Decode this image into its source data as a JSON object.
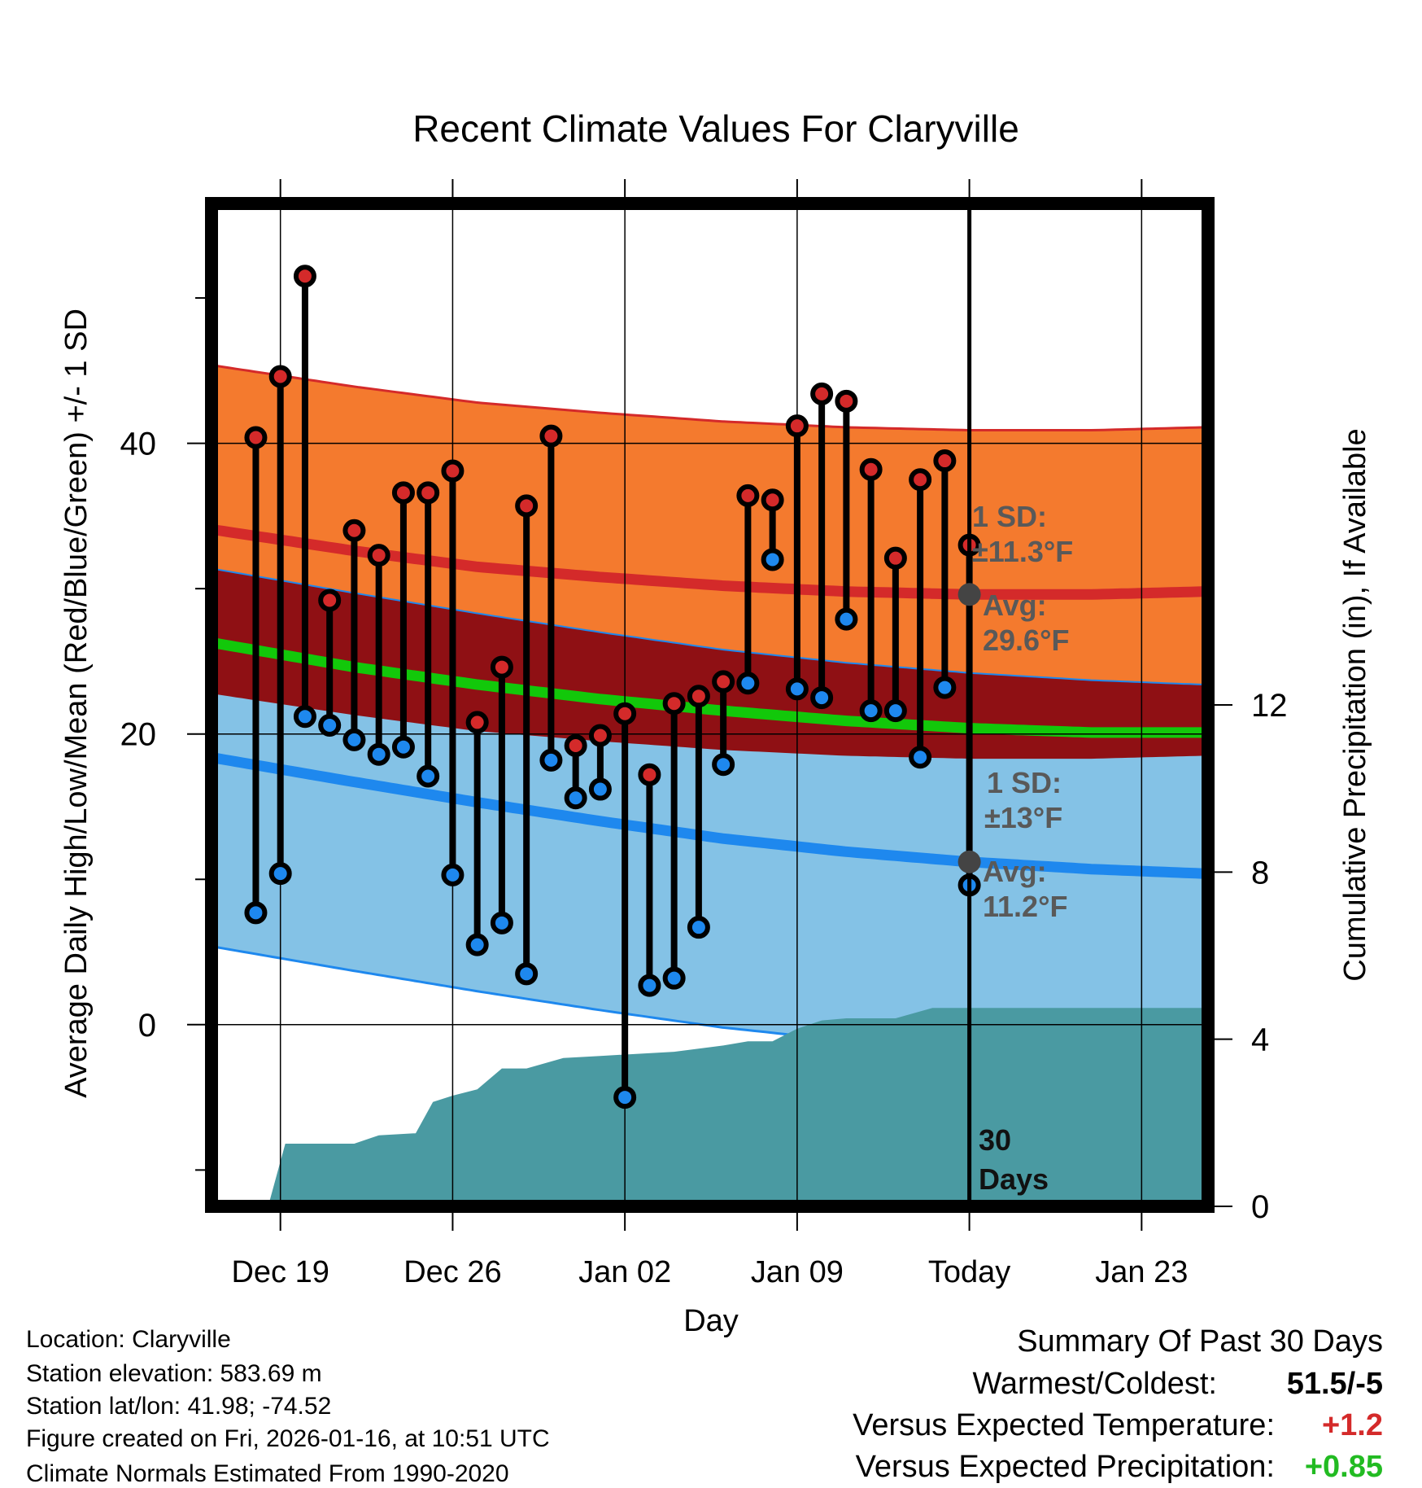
{
  "colors": {
    "high_band": "#f47a2e",
    "high_avg_line": "#d42a2a",
    "mean_band": "#8f1014",
    "mean_avg_line": "#12c80a",
    "low_band": "#84c2e6",
    "low_avg_line": "#1e88ee",
    "precip_fill": "#4a9aa2",
    "high_dot": "#d42a2a",
    "low_dot": "#1e88ee",
    "today_dot": "#444444",
    "annotation_text": "#595959",
    "positive_temp": "#d42a2a",
    "positive_precip": "#22bb22"
  },
  "chart_data": {
    "type": "range",
    "title": "Recent Climate Values For Claryville",
    "xlabel": "Day",
    "ylabel_left": "Average Daily High/Low/Mean (Red/Blue/Green) +/- 1 SD",
    "ylabel_right": "Cumulative Precipitation (in), If Available",
    "x_range_days": [
      -30.8,
      9.7
    ],
    "ylim_left": [
      -12.5,
      56.5
    ],
    "ylim_right": [
      0,
      24
    ],
    "left_ticks": [
      0,
      20,
      40
    ],
    "left_minor_ticks": [
      -10,
      10,
      30,
      50
    ],
    "right_ticks": [
      0,
      4,
      8,
      12
    ],
    "x_ticks": [
      {
        "day": -28,
        "label": "Dec 19"
      },
      {
        "day": -21,
        "label": "Dec 26"
      },
      {
        "day": -14,
        "label": "Jan 02"
      },
      {
        "day": -7,
        "label": "Jan 09"
      },
      {
        "day": 0,
        "label": "Today"
      },
      {
        "day": 7,
        "label": "Jan 23"
      }
    ],
    "normals": {
      "days": [
        -30.5,
        -25,
        -20,
        -15,
        -10,
        -5,
        0,
        5,
        9.5
      ],
      "high_avg": [
        34.0,
        32.6,
        31.5,
        30.8,
        30.2,
        29.8,
        29.6,
        29.6,
        29.8
      ],
      "high_sd": 11.3,
      "low_avg": [
        18.3,
        16.7,
        15.3,
        14.0,
        12.8,
        11.9,
        11.2,
        10.7,
        10.4
      ],
      "low_sd": 13.0,
      "mean_avg": [
        26.2,
        24.6,
        23.4,
        22.4,
        21.6,
        20.9,
        20.4,
        20.1,
        20.1
      ]
    },
    "daily": [
      {
        "day": -29.0,
        "high": 40.4,
        "low": 7.7
      },
      {
        "day": -28.0,
        "high": 44.6,
        "low": 10.4
      },
      {
        "day": -27.0,
        "high": 51.5,
        "low": 21.2
      },
      {
        "day": -26.0,
        "high": 29.2,
        "low": 20.6
      },
      {
        "day": -25.0,
        "high": 34.0,
        "low": 19.6
      },
      {
        "day": -24.0,
        "high": 32.3,
        "low": 18.6
      },
      {
        "day": -23.0,
        "high": 36.6,
        "low": 19.1
      },
      {
        "day": -22.0,
        "high": 36.6,
        "low": 17.1
      },
      {
        "day": -21.0,
        "high": 38.1,
        "low": 10.3
      },
      {
        "day": -20.0,
        "high": 20.8,
        "low": 5.5
      },
      {
        "day": -19.0,
        "high": 24.6,
        "low": 7.0
      },
      {
        "day": -18.0,
        "high": 35.7,
        "low": 3.5
      },
      {
        "day": -17.0,
        "high": 40.5,
        "low": 18.2
      },
      {
        "day": -16.0,
        "high": 19.2,
        "low": 15.6
      },
      {
        "day": -15.0,
        "high": 19.9,
        "low": 16.2
      },
      {
        "day": -14.0,
        "high": 21.4,
        "low": -5.0
      },
      {
        "day": -13.0,
        "high": 17.2,
        "low": 2.7
      },
      {
        "day": -12.0,
        "high": 22.1,
        "low": 3.2
      },
      {
        "day": -11.0,
        "high": 22.6,
        "low": 6.7
      },
      {
        "day": -10.0,
        "high": 23.6,
        "low": 17.9
      },
      {
        "day": -9.0,
        "high": 36.4,
        "low": 23.5
      },
      {
        "day": -8.0,
        "high": 36.1,
        "low": 32.0
      },
      {
        "day": -7.0,
        "high": 41.2,
        "low": 23.1
      },
      {
        "day": -6.0,
        "high": 43.4,
        "low": 22.5
      },
      {
        "day": -5.0,
        "high": 42.9,
        "low": 27.9
      },
      {
        "day": -4.0,
        "high": 38.2,
        "low": 21.6
      },
      {
        "day": -3.0,
        "high": 32.1,
        "low": 21.6
      },
      {
        "day": -2.0,
        "high": 37.5,
        "low": 18.4
      },
      {
        "day": -1.0,
        "high": 38.8,
        "low": 23.2
      },
      {
        "day": 0.0,
        "high": 33.0,
        "low": 9.6
      }
    ],
    "precip_cumulative": [
      {
        "day": -28.5,
        "value": 0.0
      },
      {
        "day": -27.8,
        "value": 1.5
      },
      {
        "day": -25.0,
        "value": 1.5
      },
      {
        "day": -24.0,
        "value": 1.7
      },
      {
        "day": -22.5,
        "value": 1.75
      },
      {
        "day": -21.8,
        "value": 2.5
      },
      {
        "day": -21.0,
        "value": 2.65
      },
      {
        "day": -20.0,
        "value": 2.8
      },
      {
        "day": -19.0,
        "value": 3.3
      },
      {
        "day": -18.0,
        "value": 3.3
      },
      {
        "day": -16.5,
        "value": 3.55
      },
      {
        "day": -15.0,
        "value": 3.6
      },
      {
        "day": -12.0,
        "value": 3.7
      },
      {
        "day": -10.0,
        "value": 3.85
      },
      {
        "day": -9.0,
        "value": 3.95
      },
      {
        "day": -8.0,
        "value": 3.95
      },
      {
        "day": -7.0,
        "value": 4.25
      },
      {
        "day": -6.0,
        "value": 4.45
      },
      {
        "day": -5.0,
        "value": 4.5
      },
      {
        "day": -3.0,
        "value": 4.5
      },
      {
        "day": -1.5,
        "value": 4.75
      },
      {
        "day": 9.7,
        "value": 4.75
      }
    ],
    "annotations": {
      "high_sd_label": "1 SD:",
      "high_sd_value": "±11.3°F",
      "high_avg_label": "Avg:",
      "high_avg_value": "29.6°F",
      "low_sd_label": "1 SD:",
      "low_sd_value": "±13°F",
      "low_avg_label": "Avg:",
      "low_avg_value": "11.2°F",
      "days_number": "30",
      "days_word": "Days"
    }
  },
  "footer_left": [
    "Location: Claryville",
    "Station elevation: 583.69 m",
    "Station lat/lon: 41.98; -74.52",
    "Figure created on Fri, 2026-01-16, at 10:51 UTC",
    "Climate Normals Estimated From 1990-2020"
  ],
  "summary": {
    "title": "Summary Of Past 30 Days",
    "rows": [
      {
        "label": "Warmest/Coldest:",
        "value": "51.5/-5"
      },
      {
        "label": "Versus Expected Temperature:",
        "value": "+1.2"
      },
      {
        "label": "Versus Expected Precipitation:",
        "value": "+0.85"
      }
    ]
  }
}
